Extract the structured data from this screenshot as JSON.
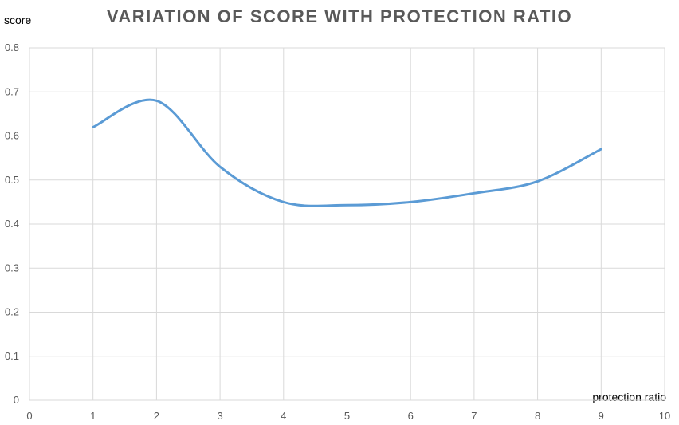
{
  "chart_data": {
    "type": "line",
    "title": "VARIATION OF SCORE WITH PROTECTION RATIO",
    "xlabel": "protection ratio",
    "ylabel": "score",
    "xlim": [
      0,
      10
    ],
    "ylim": [
      0,
      0.8
    ],
    "x_ticks": [
      "0",
      "1",
      "2",
      "3",
      "4",
      "5",
      "6",
      "7",
      "8",
      "9",
      "10"
    ],
    "y_ticks": [
      "0",
      "0.1",
      "0.2",
      "0.3",
      "0.4",
      "0.5",
      "0.6",
      "0.7",
      "0.8"
    ],
    "grid": true,
    "smooth": true,
    "series": [
      {
        "x": [
          1,
          2,
          3,
          4,
          5,
          6,
          7,
          8,
          9
        ],
        "values": [
          0.62,
          0.68,
          0.53,
          0.45,
          0.443,
          0.45,
          0.47,
          0.497,
          0.57
        ],
        "color": "#5B9BD5"
      }
    ]
  }
}
